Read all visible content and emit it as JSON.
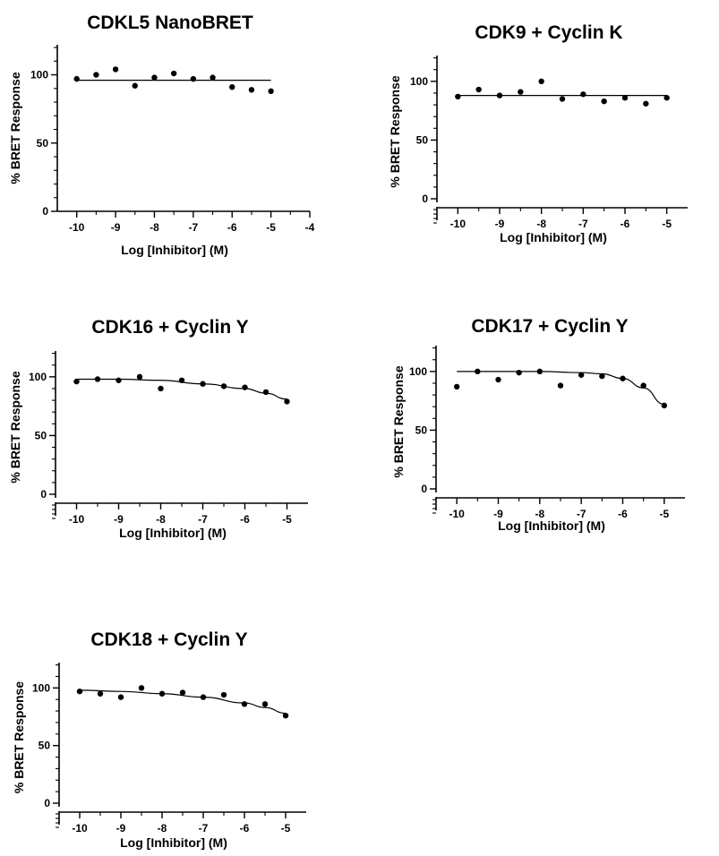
{
  "chart_data": [
    {
      "type": "scatter",
      "title": "CDKL5 NanoBRET",
      "xlabel": "Log [Inhibitor] (M)",
      "ylabel": "% BRET Response",
      "xlim": [
        -10.5,
        -4
      ],
      "ylim": [
        0,
        122
      ],
      "xticks": [
        -10,
        -9,
        -8,
        -7,
        -6,
        -5,
        -4
      ],
      "yticks": [
        0,
        50,
        100
      ],
      "y_axis_break": false,
      "series": [
        {
          "x": [
            -10,
            -9.5,
            -9,
            -8.5,
            -8,
            -7.5,
            -7,
            -6.5,
            -6,
            -5.5,
            -5
          ],
          "y": [
            97,
            100,
            104,
            92,
            98,
            101,
            97,
            98,
            91,
            89,
            88
          ],
          "fit": {
            "type": "flat",
            "x": [
              -10,
              -5
            ],
            "y": [
              96,
              96
            ]
          }
        }
      ]
    },
    {
      "type": "scatter",
      "title": "CDK9 + Cyclin K",
      "xlabel": "Log [Inhibitor] (M)",
      "ylabel": "% BRET Response",
      "xlim": [
        -10.5,
        -4.5
      ],
      "ylim": [
        0,
        122
      ],
      "xticks": [
        -10,
        -9,
        -8,
        -7,
        -6,
        -5
      ],
      "yticks": [
        0,
        50,
        100
      ],
      "y_axis_break": true,
      "series": [
        {
          "x": [
            -10,
            -9.5,
            -9,
            -8.5,
            -8,
            -7.5,
            -7,
            -6.5,
            -6,
            -5.5,
            -5
          ],
          "y": [
            87,
            93,
            88,
            91,
            100,
            85,
            89,
            83,
            86,
            81,
            86
          ],
          "fit": {
            "type": "flat",
            "x": [
              -10,
              -5
            ],
            "y": [
              88,
              88
            ]
          }
        }
      ]
    },
    {
      "type": "scatter",
      "title": "CDK16 + Cyclin Y",
      "xlabel": "Log [Inhibitor] (M)",
      "ylabel": "% BRET Response",
      "xlim": [
        -10.5,
        -4.5
      ],
      "ylim": [
        0,
        122
      ],
      "xticks": [
        -10,
        -9,
        -8,
        -7,
        -6,
        -5
      ],
      "yticks": [
        0,
        50,
        100
      ],
      "y_axis_break": true,
      "series": [
        {
          "x": [
            -10,
            -9.5,
            -9,
            -8.5,
            -8,
            -7.5,
            -7,
            -6.5,
            -6,
            -5.5,
            -5
          ],
          "y": [
            96,
            98,
            97,
            100,
            90,
            97,
            94,
            92,
            91,
            87,
            79
          ],
          "fit": {
            "type": "curve",
            "x": [
              -10,
              -9,
              -8,
              -7,
              -6,
              -5.5,
              -5
            ],
            "y": [
              98,
              98,
              97,
              94,
              90,
              86,
              81
            ]
          }
        }
      ]
    },
    {
      "type": "scatter",
      "title": "CDK17 + Cyclin Y",
      "xlabel": "Log [Inhibitor] (M)",
      "ylabel": "% BRET Response",
      "xlim": [
        -10.5,
        -4.5
      ],
      "ylim": [
        0,
        122
      ],
      "xticks": [
        -10,
        -9,
        -8,
        -7,
        -6,
        -5
      ],
      "yticks": [
        0,
        50,
        100
      ],
      "y_axis_break": true,
      "series": [
        {
          "x": [
            -10,
            -9.5,
            -9,
            -8.5,
            -8,
            -7.5,
            -7,
            -6.5,
            -6,
            -5.5,
            -5
          ],
          "y": [
            87,
            100,
            93,
            99,
            100,
            88,
            97,
            96,
            94,
            88,
            71
          ],
          "fit": {
            "type": "curve",
            "x": [
              -10,
              -8,
              -7,
              -6.5,
              -6,
              -5.5,
              -5
            ],
            "y": [
              100,
              100,
              99,
              98,
              94,
              86,
              72
            ]
          }
        }
      ]
    },
    {
      "type": "scatter",
      "title": "CDK18 + Cyclin Y",
      "xlabel": "Log [Inhibitor] (M)",
      "ylabel": "% BRET Response",
      "xlim": [
        -10.5,
        -4.5
      ],
      "ylim": [
        0,
        122
      ],
      "xticks": [
        -10,
        -9,
        -8,
        -7,
        -6,
        -5
      ],
      "yticks": [
        0,
        50,
        100
      ],
      "y_axis_break": true,
      "series": [
        {
          "x": [
            -10,
            -9.5,
            -9,
            -8.5,
            -8,
            -7.5,
            -7,
            -6.5,
            -6,
            -5.5,
            -5
          ],
          "y": [
            97,
            95,
            92,
            100,
            95,
            96,
            92,
            94,
            86,
            86,
            76
          ],
          "fit": {
            "type": "curve",
            "x": [
              -10,
              -9,
              -8,
              -7,
              -6,
              -5.5,
              -5
            ],
            "y": [
              98,
              97,
              95,
              92,
              87,
              83,
              78
            ]
          }
        }
      ]
    }
  ]
}
